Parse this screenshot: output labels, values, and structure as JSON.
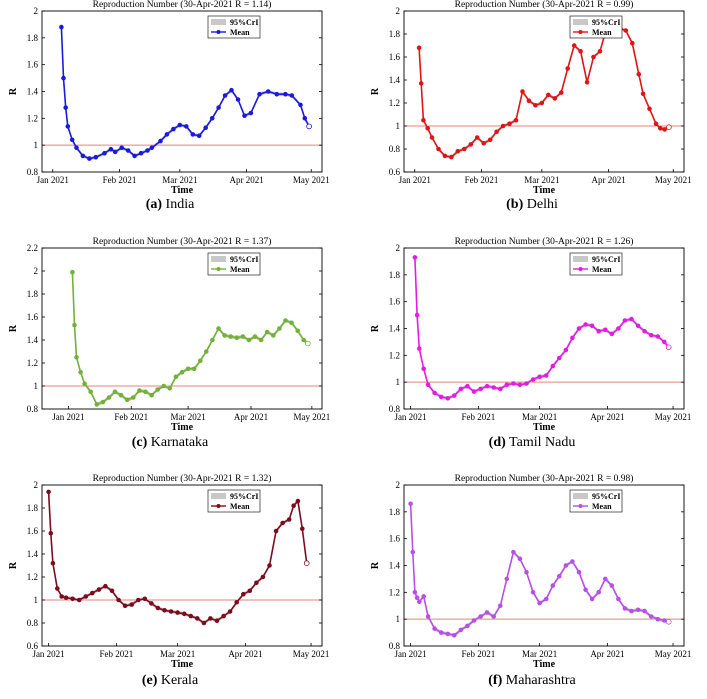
{
  "colors": {
    "ref_line": "#e8837a",
    "band": "#c8c8c8",
    "axis": "#000000"
  },
  "chart_data": [
    {
      "id": "a",
      "type": "line",
      "letter": "(a)",
      "region": "India",
      "title": "Reproduction Number (30-Apr-2021 R = 1.14)",
      "xlabel": "Time",
      "ylabel": "R",
      "ylim": [
        0.8,
        2
      ],
      "yticks": [
        "0.8",
        "1",
        "1.2",
        "1.4",
        "1.6",
        "1.8",
        "2"
      ],
      "xticks": [
        "Jan 2021",
        "Feb 2021",
        "Mar 2021",
        "Apr 2021",
        "May 2021"
      ],
      "xrange_days": [
        -5,
        125
      ],
      "ref_line": 1,
      "color": "#1a1adc",
      "legend": [
        "95%CrI",
        "Mean"
      ],
      "series": [
        {
          "name": "Mean",
          "x": [
            4,
            5,
            6,
            7,
            9,
            11,
            14,
            17,
            20,
            24,
            27,
            29,
            32,
            35,
            38,
            41,
            44,
            46,
            50,
            53,
            56,
            59,
            62,
            65,
            68,
            71,
            74,
            77,
            80,
            83,
            86,
            89,
            92,
            96,
            100,
            104,
            108,
            111,
            115,
            117,
            119
          ],
          "values": [
            1.88,
            1.5,
            1.28,
            1.14,
            1.04,
            0.98,
            0.92,
            0.9,
            0.91,
            0.94,
            0.97,
            0.95,
            0.98,
            0.96,
            0.92,
            0.94,
            0.96,
            0.98,
            1.03,
            1.08,
            1.12,
            1.15,
            1.14,
            1.08,
            1.07,
            1.13,
            1.2,
            1.28,
            1.37,
            1.41,
            1.34,
            1.22,
            1.24,
            1.38,
            1.4,
            1.38,
            1.38,
            1.37,
            1.3,
            1.2,
            1.14
          ]
        }
      ]
    },
    {
      "id": "b",
      "type": "line",
      "letter": "(b)",
      "region": "Delhi",
      "title": "Reproduction Number (30-Apr-2021 R = 0.99)",
      "xlabel": "Time",
      "ylabel": "R",
      "ylim": [
        0.6,
        2
      ],
      "yticks": [
        "0.6",
        "0.8",
        "1",
        "1.2",
        "1.4",
        "1.6",
        "1.8",
        "2"
      ],
      "xticks": [
        "Jan 2021",
        "Feb 2021",
        "Mar 2021",
        "Apr 2021",
        "May 2021"
      ],
      "xrange_days": [
        -5,
        125
      ],
      "ref_line": 1,
      "color": "#e01515",
      "legend": [
        "95%CrI",
        "Mean"
      ],
      "series": [
        {
          "name": "Mean",
          "x": [
            2,
            3,
            4,
            6,
            8,
            11,
            14,
            17,
            20,
            23,
            26,
            29,
            32,
            35,
            38,
            41,
            44,
            47,
            50,
            53,
            56,
            59,
            62,
            65,
            68,
            71,
            74,
            77,
            80,
            83,
            86,
            89,
            92,
            95,
            98,
            101,
            104,
            106,
            109,
            112,
            114,
            116,
            118
          ],
          "values": [
            1.68,
            1.37,
            1.05,
            0.98,
            0.9,
            0.8,
            0.74,
            0.73,
            0.78,
            0.8,
            0.84,
            0.9,
            0.85,
            0.88,
            0.95,
            1.0,
            1.02,
            1.05,
            1.3,
            1.22,
            1.18,
            1.2,
            1.27,
            1.24,
            1.29,
            1.5,
            1.7,
            1.65,
            1.38,
            1.6,
            1.65,
            1.85,
            1.88,
            1.85,
            1.83,
            1.72,
            1.45,
            1.28,
            1.15,
            1.02,
            0.98,
            0.97,
            0.99
          ]
        }
      ]
    },
    {
      "id": "c",
      "type": "line",
      "letter": "(c)",
      "region": "Karnataka",
      "title": "Reproduction Number (30-Apr-2021 R = 1.37)",
      "xlabel": "Time",
      "ylabel": "R",
      "ylim": [
        0.8,
        2.2
      ],
      "yticks": [
        "0.8",
        "1",
        "1.2",
        "1.4",
        "1.6",
        "1.8",
        "2",
        "2.2"
      ],
      "xticks": [
        "Jan 2021",
        "Feb 2021",
        "Mar 2021",
        "Apr 2021",
        "May 2021"
      ],
      "xrange_days": [
        -13,
        125
      ],
      "ref_line": 1,
      "color": "#72b236",
      "legend": [
        "95%CrI",
        "Mean"
      ],
      "series": [
        {
          "name": "Mean",
          "x": [
            2,
            3,
            4,
            6,
            8,
            11,
            14,
            17,
            20,
            23,
            26,
            29,
            32,
            35,
            38,
            41,
            44,
            47,
            50,
            53,
            56,
            59,
            62,
            65,
            68,
            71,
            74,
            77,
            80,
            83,
            86,
            89,
            92,
            95,
            98,
            101,
            104,
            107,
            110,
            113,
            116,
            118
          ],
          "values": [
            1.99,
            1.53,
            1.25,
            1.12,
            1.02,
            0.95,
            0.84,
            0.86,
            0.9,
            0.95,
            0.92,
            0.88,
            0.9,
            0.96,
            0.95,
            0.92,
            0.97,
            1.0,
            0.98,
            1.08,
            1.12,
            1.15,
            1.15,
            1.22,
            1.3,
            1.4,
            1.5,
            1.44,
            1.43,
            1.42,
            1.43,
            1.4,
            1.43,
            1.4,
            1.47,
            1.44,
            1.5,
            1.57,
            1.55,
            1.48,
            1.4,
            1.37
          ]
        }
      ]
    },
    {
      "id": "d",
      "type": "line",
      "letter": "(d)",
      "region": "Tamil Nadu",
      "title": "Reproduction Number (30-Apr-2021 R = 1.26)",
      "xlabel": "Time",
      "ylabel": "R",
      "ylim": [
        0.8,
        2
      ],
      "yticks": [
        "0.8",
        "1",
        "1.2",
        "1.4",
        "1.6",
        "1.8",
        "2"
      ],
      "xticks": [
        "Jan 2021",
        "Feb 2021",
        "Mar 2021",
        "Apr 2021",
        "May 2021"
      ],
      "xrange_days": [
        -3,
        125
      ],
      "ref_line": 1,
      "color": "#e51be5",
      "legend": [
        "95%CrI",
        "Mean"
      ],
      "series": [
        {
          "name": "Mean",
          "x": [
            2,
            3,
            4,
            6,
            8,
            11,
            14,
            17,
            20,
            23,
            26,
            29,
            32,
            35,
            38,
            41,
            44,
            47,
            50,
            53,
            56,
            59,
            62,
            65,
            68,
            71,
            74,
            77,
            80,
            83,
            86,
            89,
            92,
            95,
            98,
            101,
            104,
            107,
            110,
            113,
            116,
            118
          ],
          "values": [
            1.93,
            1.5,
            1.25,
            1.1,
            0.98,
            0.92,
            0.89,
            0.88,
            0.9,
            0.95,
            0.97,
            0.93,
            0.95,
            0.97,
            0.96,
            0.95,
            0.98,
            0.99,
            0.98,
            0.99,
            1.02,
            1.04,
            1.05,
            1.12,
            1.18,
            1.24,
            1.33,
            1.4,
            1.43,
            1.42,
            1.38,
            1.39,
            1.36,
            1.4,
            1.46,
            1.47,
            1.42,
            1.38,
            1.35,
            1.34,
            1.3,
            1.26
          ]
        }
      ]
    },
    {
      "id": "e",
      "type": "line",
      "letter": "(e)",
      "region": "Kerala",
      "title": "Reproduction Number (30-Apr-2021 R = 1.32)",
      "xlabel": "Time",
      "ylabel": "R",
      "ylim": [
        0.6,
        2
      ],
      "yticks": [
        "0.6",
        "0.8",
        "1",
        "1.2",
        "1.4",
        "1.6",
        "1.8",
        "2"
      ],
      "xticks": [
        "Jan 2021",
        "Feb 2021",
        "Mar 2021",
        "Apr 2021",
        "May 2021"
      ],
      "xrange_days": [
        -3,
        125
      ],
      "ref_line": 1,
      "color": "#7b0d1e",
      "legend": [
        "95%CrI",
        "Mean"
      ],
      "series": [
        {
          "name": "Mean",
          "x": [
            0,
            1,
            2,
            4,
            6,
            8,
            11,
            14,
            17,
            20,
            23,
            26,
            29,
            32,
            35,
            38,
            41,
            44,
            47,
            50,
            53,
            56,
            59,
            62,
            65,
            68,
            71,
            74,
            77,
            80,
            83,
            86,
            89,
            92,
            95,
            98,
            101,
            104,
            107,
            110,
            112,
            114,
            116,
            118
          ],
          "values": [
            1.94,
            1.58,
            1.32,
            1.1,
            1.03,
            1.02,
            1.01,
            1.0,
            1.03,
            1.06,
            1.09,
            1.12,
            1.08,
            1.0,
            0.95,
            0.96,
            1.0,
            1.01,
            0.97,
            0.93,
            0.91,
            0.9,
            0.89,
            0.88,
            0.86,
            0.84,
            0.8,
            0.84,
            0.82,
            0.86,
            0.9,
            0.98,
            1.05,
            1.08,
            1.15,
            1.2,
            1.3,
            1.6,
            1.67,
            1.7,
            1.82,
            1.86,
            1.62,
            1.32
          ]
        }
      ]
    },
    {
      "id": "f",
      "type": "line",
      "letter": "(f)",
      "region": "Maharashtra",
      "title": "Reproduction Number (30-Apr-2021 R = 0.98)",
      "xlabel": "Time",
      "ylabel": "R",
      "ylim": [
        0.8,
        2
      ],
      "yticks": [
        "0.8",
        "1",
        "1.2",
        "1.4",
        "1.6",
        "1.8",
        "2"
      ],
      "xticks": [
        "Jan 2021",
        "Feb 2021",
        "Mar 2021",
        "Apr 2021",
        "May 2021"
      ],
      "xrange_days": [
        -3,
        125
      ],
      "ref_line": 1,
      "color": "#b84fe6",
      "legend": [
        "95%CrI",
        "Mean"
      ],
      "series": [
        {
          "name": "Mean",
          "x": [
            0,
            1,
            2,
            3,
            4,
            6,
            8,
            11,
            14,
            17,
            20,
            23,
            26,
            29,
            32,
            35,
            38,
            41,
            44,
            47,
            50,
            53,
            56,
            59,
            62,
            65,
            68,
            71,
            74,
            77,
            80,
            83,
            86,
            89,
            92,
            95,
            98,
            101,
            104,
            107,
            110,
            113,
            116,
            118
          ],
          "values": [
            1.86,
            1.5,
            1.2,
            1.16,
            1.13,
            1.17,
            1.02,
            0.93,
            0.9,
            0.89,
            0.88,
            0.92,
            0.95,
            0.99,
            1.02,
            1.05,
            1.02,
            1.1,
            1.3,
            1.5,
            1.45,
            1.35,
            1.2,
            1.12,
            1.15,
            1.25,
            1.32,
            1.4,
            1.43,
            1.35,
            1.22,
            1.15,
            1.2,
            1.3,
            1.25,
            1.15,
            1.08,
            1.06,
            1.07,
            1.06,
            1.02,
            1.0,
            0.99,
            0.98
          ]
        }
      ]
    }
  ]
}
